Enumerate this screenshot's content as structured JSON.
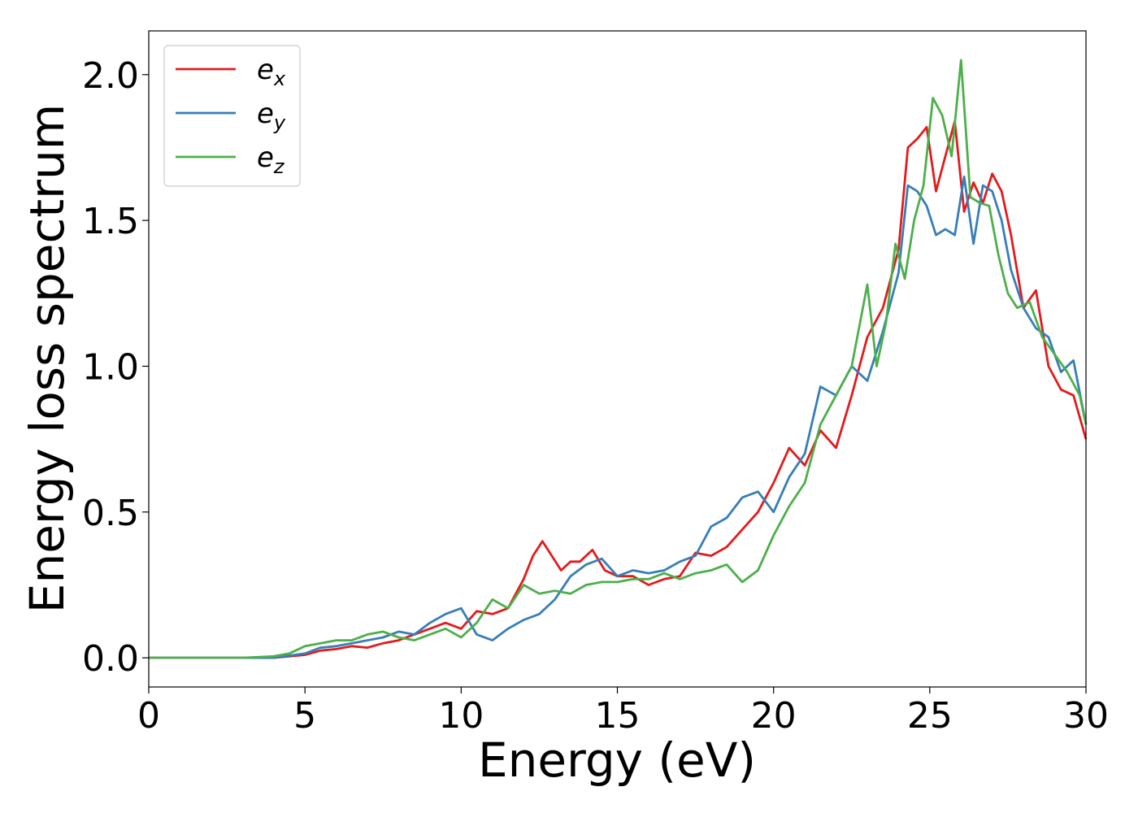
{
  "chart_data": {
    "type": "line",
    "xlabel": "Energy (eV)",
    "ylabel": "Energy loss spectrum",
    "xlim": [
      0,
      30
    ],
    "ylim": [
      -0.1,
      2.15
    ],
    "xticks": [
      0,
      5,
      10,
      15,
      20,
      25,
      30
    ],
    "xtick_labels": [
      "0",
      "5",
      "10",
      "15",
      "20",
      "25",
      "30"
    ],
    "yticks": [
      0.0,
      0.5,
      1.0,
      1.5,
      2.0
    ],
    "ytick_labels": [
      "0.0",
      "0.5",
      "1.0",
      "1.5",
      "2.0"
    ],
    "grid": false,
    "legend_position": "top-left",
    "series": [
      {
        "name": "e",
        "subscript": "x",
        "color": "#e41a1c",
        "x": [
          0,
          3,
          4,
          5,
          5.5,
          6,
          6.5,
          7,
          7.5,
          8,
          8.5,
          9,
          9.5,
          10,
          10.5,
          11,
          11.5,
          12,
          12.3,
          12.6,
          12.9,
          13.2,
          13.5,
          13.8,
          14.2,
          14.6,
          15,
          15.5,
          16,
          16.5,
          17,
          17.5,
          18,
          18.5,
          19,
          19.5,
          20,
          20.5,
          21,
          21.5,
          22,
          22.5,
          23,
          23.5,
          24,
          24.3,
          24.6,
          24.9,
          25.2,
          25.5,
          25.8,
          26.1,
          26.4,
          26.7,
          27,
          27.3,
          27.6,
          28,
          28.4,
          28.8,
          29.2,
          29.6,
          30
        ],
        "y": [
          0,
          0,
          0,
          0.01,
          0.025,
          0.03,
          0.04,
          0.035,
          0.05,
          0.06,
          0.08,
          0.1,
          0.12,
          0.1,
          0.16,
          0.15,
          0.17,
          0.27,
          0.35,
          0.4,
          0.35,
          0.3,
          0.33,
          0.33,
          0.37,
          0.3,
          0.28,
          0.28,
          0.25,
          0.27,
          0.28,
          0.36,
          0.35,
          0.38,
          0.44,
          0.5,
          0.6,
          0.72,
          0.66,
          0.78,
          0.72,
          0.9,
          1.1,
          1.2,
          1.4,
          1.75,
          1.78,
          1.82,
          1.6,
          1.72,
          1.84,
          1.53,
          1.63,
          1.56,
          1.66,
          1.6,
          1.45,
          1.2,
          1.26,
          1.0,
          0.92,
          0.9,
          0.75
        ]
      },
      {
        "name": "e",
        "subscript": "y",
        "color": "#377eb8",
        "x": [
          0,
          3,
          4,
          5,
          5.5,
          6,
          6.5,
          7,
          7.5,
          8,
          8.5,
          9,
          9.5,
          10,
          10.5,
          11,
          11.5,
          12,
          12.5,
          13,
          13.5,
          14,
          14.5,
          15,
          15.5,
          16,
          16.5,
          17,
          17.5,
          18,
          18.5,
          19,
          19.5,
          20,
          20.5,
          21,
          21.5,
          22,
          22.5,
          23,
          23.5,
          24,
          24.3,
          24.6,
          24.9,
          25.2,
          25.5,
          25.8,
          26.1,
          26.4,
          26.7,
          27,
          27.3,
          27.6,
          28,
          28.4,
          28.8,
          29.2,
          29.6,
          30
        ],
        "y": [
          0,
          0,
          0,
          0.015,
          0.035,
          0.04,
          0.05,
          0.06,
          0.07,
          0.09,
          0.08,
          0.12,
          0.15,
          0.17,
          0.08,
          0.06,
          0.1,
          0.13,
          0.15,
          0.2,
          0.28,
          0.32,
          0.34,
          0.28,
          0.3,
          0.29,
          0.3,
          0.33,
          0.35,
          0.45,
          0.48,
          0.55,
          0.57,
          0.5,
          0.62,
          0.7,
          0.93,
          0.9,
          1.0,
          0.95,
          1.12,
          1.32,
          1.62,
          1.6,
          1.55,
          1.45,
          1.47,
          1.45,
          1.65,
          1.42,
          1.62,
          1.6,
          1.5,
          1.33,
          1.2,
          1.13,
          1.1,
          0.98,
          1.02,
          0.8
        ]
      },
      {
        "name": "e",
        "subscript": "z",
        "color": "#4daf4a",
        "x": [
          0,
          3,
          4,
          4.5,
          5,
          5.5,
          6,
          6.5,
          7,
          7.5,
          8,
          8.5,
          9,
          9.5,
          10,
          10.5,
          11,
          11.5,
          12,
          12.5,
          13,
          13.5,
          14,
          14.5,
          15,
          15.5,
          16,
          16.5,
          17,
          17.5,
          18,
          18.5,
          19,
          19.5,
          20,
          20.5,
          21,
          21.5,
          22,
          22.5,
          23,
          23.3,
          23.6,
          23.9,
          24.2,
          24.5,
          24.8,
          25.1,
          25.4,
          25.7,
          26,
          26.3,
          26.6,
          26.9,
          27.2,
          27.5,
          27.8,
          28.2,
          28.6,
          29,
          29.4,
          29.8,
          30
        ],
        "y": [
          0,
          0,
          0.005,
          0.015,
          0.04,
          0.05,
          0.06,
          0.06,
          0.08,
          0.09,
          0.07,
          0.06,
          0.08,
          0.1,
          0.07,
          0.12,
          0.2,
          0.17,
          0.25,
          0.22,
          0.23,
          0.22,
          0.25,
          0.26,
          0.26,
          0.27,
          0.27,
          0.29,
          0.27,
          0.29,
          0.3,
          0.32,
          0.26,
          0.3,
          0.42,
          0.52,
          0.6,
          0.8,
          0.9,
          1.0,
          1.28,
          1.0,
          1.15,
          1.42,
          1.3,
          1.5,
          1.62,
          1.92,
          1.86,
          1.72,
          2.05,
          1.58,
          1.56,
          1.55,
          1.38,
          1.25,
          1.2,
          1.22,
          1.1,
          1.04,
          0.98,
          0.9,
          0.8
        ]
      }
    ]
  }
}
